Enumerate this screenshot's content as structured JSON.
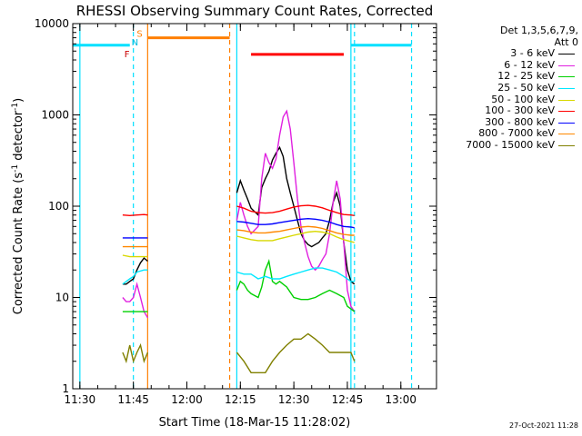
{
  "chart_data": {
    "type": "line",
    "title": "RHESSI Observing Summary Count Rates, Corrected",
    "xlabel": "Start Time (18-Mar-15 11:28:02)",
    "ylabel": "Corrected Count Rate (s⁻¹ detector⁻¹)",
    "ylabel_parts": [
      "Corrected Count Rate (s",
      "-1",
      " detector",
      "-1",
      ")"
    ],
    "yscale": "log",
    "xlim": [
      "11:28",
      "13:10"
    ],
    "ylim": [
      1,
      10000
    ],
    "xticks": [
      "11:30",
      "11:45",
      "12:00",
      "12:15",
      "12:30",
      "12:45",
      "13:00"
    ],
    "yticks": [
      "1",
      "10",
      "100",
      "1000",
      "10000"
    ],
    "legend_header": [
      "Det 1,3,5,6,7,9,",
      "Att 0"
    ],
    "data_gaps": [
      [
        "11:49",
        "12:14"
      ],
      [
        "12:46",
        "13:10"
      ]
    ],
    "segments": [
      {
        "start": "11:42",
        "end": "11:49"
      },
      {
        "start": "12:14",
        "end": "12:47"
      }
    ],
    "series": [
      {
        "name": "3 - 6 keV",
        "color": "#000000",
        "points": [
          [
            "11:42",
            14
          ],
          [
            "11:43",
            14
          ],
          [
            "11:44",
            15
          ],
          [
            "11:45",
            16
          ],
          [
            "11:46",
            20
          ],
          [
            "11:47",
            24
          ],
          [
            "11:48",
            27
          ],
          [
            "11:49",
            25
          ],
          [
            "12:14",
            140
          ],
          [
            "12:15",
            190
          ],
          [
            "12:16",
            150
          ],
          [
            "12:17",
            120
          ],
          [
            "12:18",
            95
          ],
          [
            "12:20",
            80
          ],
          [
            "12:21",
            160
          ],
          [
            "12:22",
            200
          ],
          [
            "12:23",
            240
          ],
          [
            "12:24",
            320
          ],
          [
            "12:25",
            380
          ],
          [
            "12:26",
            440
          ],
          [
            "12:27",
            350
          ],
          [
            "12:28",
            200
          ],
          [
            "12:29",
            140
          ],
          [
            "12:30",
            100
          ],
          [
            "12:31",
            70
          ],
          [
            "12:32",
            50
          ],
          [
            "12:33",
            42
          ],
          [
            "12:34",
            38
          ],
          [
            "12:35",
            36
          ],
          [
            "12:36",
            38
          ],
          [
            "12:37",
            40
          ],
          [
            "12:38",
            45
          ],
          [
            "12:39",
            50
          ],
          [
            "12:40",
            70
          ],
          [
            "12:41",
            110
          ],
          [
            "12:42",
            140
          ],
          [
            "12:43",
            100
          ],
          [
            "12:44",
            40
          ],
          [
            "12:45",
            20
          ],
          [
            "12:46",
            15
          ],
          [
            "12:47",
            14
          ]
        ]
      },
      {
        "name": "6 - 12 keV",
        "color": "#e020e0",
        "points": [
          [
            "11:42",
            10
          ],
          [
            "11:43",
            9
          ],
          [
            "11:44",
            9
          ],
          [
            "11:45",
            10
          ],
          [
            "11:46",
            14
          ],
          [
            "11:47",
            10
          ],
          [
            "11:48",
            7
          ],
          [
            "11:49",
            6
          ],
          [
            "12:14",
            70
          ],
          [
            "12:15",
            110
          ],
          [
            "12:16",
            80
          ],
          [
            "12:17",
            60
          ],
          [
            "12:18",
            50
          ],
          [
            "12:20",
            60
          ],
          [
            "12:21",
            200
          ],
          [
            "12:22",
            380
          ],
          [
            "12:23",
            300
          ],
          [
            "12:24",
            260
          ],
          [
            "12:25",
            330
          ],
          [
            "12:26",
            600
          ],
          [
            "12:27",
            950
          ],
          [
            "12:28",
            1100
          ],
          [
            "12:29",
            700
          ],
          [
            "12:30",
            300
          ],
          [
            "12:31",
            120
          ],
          [
            "12:32",
            60
          ],
          [
            "12:33",
            40
          ],
          [
            "12:34",
            28
          ],
          [
            "12:35",
            22
          ],
          [
            "12:36",
            20
          ],
          [
            "12:37",
            22
          ],
          [
            "12:38",
            26
          ],
          [
            "12:39",
            30
          ],
          [
            "12:40",
            50
          ],
          [
            "12:41",
            110
          ],
          [
            "12:42",
            190
          ],
          [
            "12:43",
            120
          ],
          [
            "12:44",
            40
          ],
          [
            "12:45",
            12
          ],
          [
            "12:46",
            8
          ],
          [
            "12:47",
            7
          ]
        ]
      },
      {
        "name": "12 - 25 keV",
        "color": "#00d000",
        "points": [
          [
            "11:42",
            7
          ],
          [
            "11:44",
            7
          ],
          [
            "11:46",
            7
          ],
          [
            "11:48",
            7
          ],
          [
            "11:49",
            7
          ],
          [
            "12:14",
            12
          ],
          [
            "12:15",
            15
          ],
          [
            "12:16",
            14
          ],
          [
            "12:17",
            12
          ],
          [
            "12:18",
            11
          ],
          [
            "12:20",
            10
          ],
          [
            "12:21",
            13
          ],
          [
            "12:22",
            20
          ],
          [
            "12:23",
            25
          ],
          [
            "12:24",
            15
          ],
          [
            "12:25",
            14
          ],
          [
            "12:26",
            15
          ],
          [
            "12:28",
            13
          ],
          [
            "12:30",
            10
          ],
          [
            "12:32",
            9.5
          ],
          [
            "12:34",
            9.5
          ],
          [
            "12:36",
            10
          ],
          [
            "12:38",
            11
          ],
          [
            "12:40",
            12
          ],
          [
            "12:42",
            11
          ],
          [
            "12:44",
            10
          ],
          [
            "12:45",
            8
          ],
          [
            "12:47",
            7
          ]
        ]
      },
      {
        "name": "25 - 50 keV",
        "color": "#00e8ff",
        "points": [
          [
            "11:42",
            14
          ],
          [
            "11:44",
            16
          ],
          [
            "11:45",
            17
          ],
          [
            "11:46",
            19
          ],
          [
            "11:48",
            20
          ],
          [
            "11:49",
            20
          ],
          [
            "12:14",
            19
          ],
          [
            "12:16",
            18
          ],
          [
            "12:18",
            18
          ],
          [
            "12:20",
            16
          ],
          [
            "12:22",
            17
          ],
          [
            "12:24",
            16
          ],
          [
            "12:26",
            16
          ],
          [
            "12:28",
            17
          ],
          [
            "12:30",
            18
          ],
          [
            "12:32",
            19
          ],
          [
            "12:34",
            20
          ],
          [
            "12:36",
            21
          ],
          [
            "12:38",
            21
          ],
          [
            "12:40",
            20
          ],
          [
            "12:42",
            19
          ],
          [
            "12:44",
            17
          ],
          [
            "12:46",
            15
          ],
          [
            "12:47",
            15
          ]
        ]
      },
      {
        "name": "50 - 100 keV",
        "color": "#d8d800",
        "points": [
          [
            "11:42",
            29
          ],
          [
            "11:44",
            28
          ],
          [
            "11:46",
            28
          ],
          [
            "11:48",
            28
          ],
          [
            "11:49",
            28
          ],
          [
            "12:14",
            47
          ],
          [
            "12:16",
            45
          ],
          [
            "12:18",
            43
          ],
          [
            "12:20",
            42
          ],
          [
            "12:22",
            42
          ],
          [
            "12:24",
            42
          ],
          [
            "12:26",
            44
          ],
          [
            "12:28",
            46
          ],
          [
            "12:30",
            48
          ],
          [
            "12:32",
            50
          ],
          [
            "12:34",
            52
          ],
          [
            "12:36",
            53
          ],
          [
            "12:38",
            52
          ],
          [
            "12:40",
            50
          ],
          [
            "12:42",
            46
          ],
          [
            "12:44",
            43
          ],
          [
            "12:46",
            41
          ],
          [
            "12:47",
            40
          ]
        ]
      },
      {
        "name": "100 - 300 keV",
        "color": "#ff0000",
        "points": [
          [
            "11:42",
            80
          ],
          [
            "11:44",
            79
          ],
          [
            "11:46",
            80
          ],
          [
            "11:48",
            81
          ],
          [
            "11:49",
            80
          ],
          [
            "12:14",
            100
          ],
          [
            "12:16",
            95
          ],
          [
            "12:18",
            88
          ],
          [
            "12:20",
            85
          ],
          [
            "12:22",
            84
          ],
          [
            "12:24",
            85
          ],
          [
            "12:26",
            88
          ],
          [
            "12:28",
            93
          ],
          [
            "12:30",
            98
          ],
          [
            "12:32",
            101
          ],
          [
            "12:34",
            102
          ],
          [
            "12:36",
            100
          ],
          [
            "12:38",
            96
          ],
          [
            "12:40",
            90
          ],
          [
            "12:42",
            85
          ],
          [
            "12:44",
            81
          ],
          [
            "12:46",
            80
          ],
          [
            "12:47",
            79
          ]
        ]
      },
      {
        "name": "300 - 800 keV",
        "color": "#0000ff",
        "points": [
          [
            "11:42",
            45
          ],
          [
            "11:44",
            45
          ],
          [
            "11:46",
            45
          ],
          [
            "11:48",
            45
          ],
          [
            "11:49",
            45
          ],
          [
            "12:14",
            68
          ],
          [
            "12:16",
            67
          ],
          [
            "12:18",
            65
          ],
          [
            "12:20",
            63
          ],
          [
            "12:22",
            63
          ],
          [
            "12:24",
            64
          ],
          [
            "12:26",
            66
          ],
          [
            "12:28",
            68
          ],
          [
            "12:30",
            70
          ],
          [
            "12:32",
            72
          ],
          [
            "12:34",
            73
          ],
          [
            "12:36",
            72
          ],
          [
            "12:38",
            70
          ],
          [
            "12:40",
            67
          ],
          [
            "12:42",
            63
          ],
          [
            "12:44",
            60
          ],
          [
            "12:46",
            59
          ],
          [
            "12:47",
            58
          ]
        ]
      },
      {
        "name": "800 - 7000 keV",
        "color": "#ff8800",
        "points": [
          [
            "11:42",
            36
          ],
          [
            "11:44",
            36
          ],
          [
            "11:46",
            36
          ],
          [
            "11:48",
            36
          ],
          [
            "11:49",
            36
          ],
          [
            "12:14",
            55
          ],
          [
            "12:16",
            54
          ],
          [
            "12:18",
            52
          ],
          [
            "12:20",
            51
          ],
          [
            "12:22",
            51
          ],
          [
            "12:24",
            52
          ],
          [
            "12:26",
            53
          ],
          [
            "12:28",
            55
          ],
          [
            "12:30",
            57
          ],
          [
            "12:32",
            59
          ],
          [
            "12:34",
            60
          ],
          [
            "12:36",
            59
          ],
          [
            "12:38",
            57
          ],
          [
            "12:40",
            54
          ],
          [
            "12:42",
            51
          ],
          [
            "12:44",
            49
          ],
          [
            "12:46",
            48
          ],
          [
            "12:47",
            48
          ]
        ]
      },
      {
        "name": "7000 - 15000 keV",
        "color": "#808000",
        "points": [
          [
            "11:42",
            2.5
          ],
          [
            "11:43",
            2
          ],
          [
            "11:44",
            3
          ],
          [
            "11:45",
            2
          ],
          [
            "11:46",
            2.5
          ],
          [
            "11:47",
            3
          ],
          [
            "11:48",
            2
          ],
          [
            "11:49",
            2.5
          ],
          [
            "12:14",
            2.5
          ],
          [
            "12:16",
            2
          ],
          [
            "12:18",
            1.5
          ],
          [
            "12:20",
            1.5
          ],
          [
            "12:22",
            1.5
          ],
          [
            "12:24",
            2
          ],
          [
            "12:26",
            2.5
          ],
          [
            "12:28",
            3
          ],
          [
            "12:30",
            3.5
          ],
          [
            "12:32",
            3.5
          ],
          [
            "12:34",
            4
          ],
          [
            "12:36",
            3.5
          ],
          [
            "12:38",
            3
          ],
          [
            "12:40",
            2.5
          ],
          [
            "12:42",
            2.5
          ],
          [
            "12:44",
            2.5
          ],
          [
            "12:46",
            2.5
          ],
          [
            "12:47",
            2
          ]
        ]
      }
    ],
    "state_bars": [
      {
        "name": "night",
        "color": "#00e0ff",
        "ranges": [
          [
            "11:28",
            "11:44"
          ],
          [
            "12:46",
            "13:03"
          ]
        ],
        "level": 5800
      },
      {
        "name": "saa",
        "color": "#ff7f00",
        "ranges": [
          [
            "11:49",
            "12:12"
          ]
        ],
        "level": 7000,
        "label": "S"
      },
      {
        "name": "flare",
        "color": "#ff0000",
        "ranges": [
          [
            "12:18",
            "12:44"
          ]
        ],
        "level": 4600
      }
    ],
    "markers": [
      {
        "label": "F",
        "color": "#cc0000",
        "time": "11:44",
        "level": 4600
      },
      {
        "label": "N",
        "color": "#00bbdd",
        "time": "11:46",
        "level": 6200
      }
    ],
    "vlines": [
      {
        "time": "11:30",
        "color": "#00e0ff",
        "style": "solid"
      },
      {
        "time": "11:45",
        "color": "#00e0ff",
        "style": "dash"
      },
      {
        "time": "11:49",
        "color": "#ff7f00",
        "style": "solid"
      },
      {
        "time": "12:12",
        "color": "#ff7f00",
        "style": "dash"
      },
      {
        "time": "12:14",
        "color": "#00e0ff",
        "style": "solid"
      },
      {
        "time": "12:46",
        "color": "#00e0ff",
        "style": "solid"
      },
      {
        "time": "12:47",
        "color": "#00e0ff",
        "style": "dash"
      },
      {
        "time": "13:03",
        "color": "#00e0ff",
        "style": "dash"
      }
    ]
  },
  "footer": "27-Oct-2021 11:28"
}
